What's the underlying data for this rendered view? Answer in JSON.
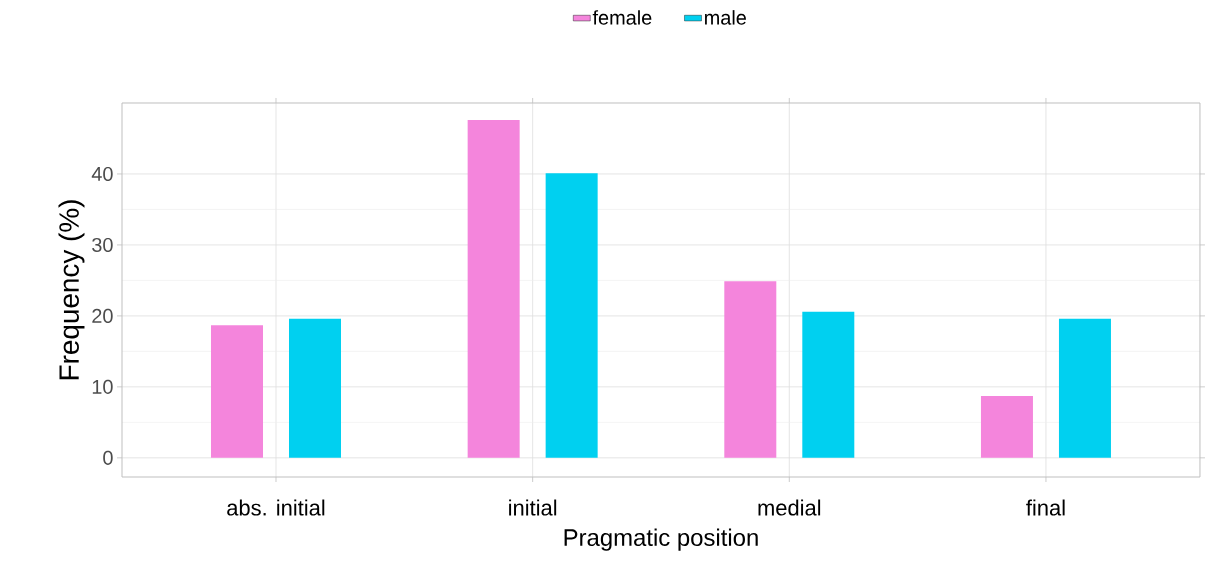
{
  "chart_data": {
    "type": "bar",
    "xlabel": "Pragmatic position",
    "ylabel": "Frequency (%)",
    "categories": [
      "abs. initial",
      "initial",
      "medial",
      "final"
    ],
    "series": [
      {
        "name": "female",
        "color": "#f485dc",
        "values": [
          18.7,
          47.6,
          24.9,
          8.7
        ]
      },
      {
        "name": "male",
        "color": "#00d0f0",
        "values": [
          19.6,
          40.1,
          20.6,
          19.6
        ]
      }
    ],
    "ylim": [
      -2.7,
      50
    ],
    "yticks": [
      0,
      10,
      20,
      30,
      40
    ],
    "grid": true,
    "legend": "top"
  }
}
